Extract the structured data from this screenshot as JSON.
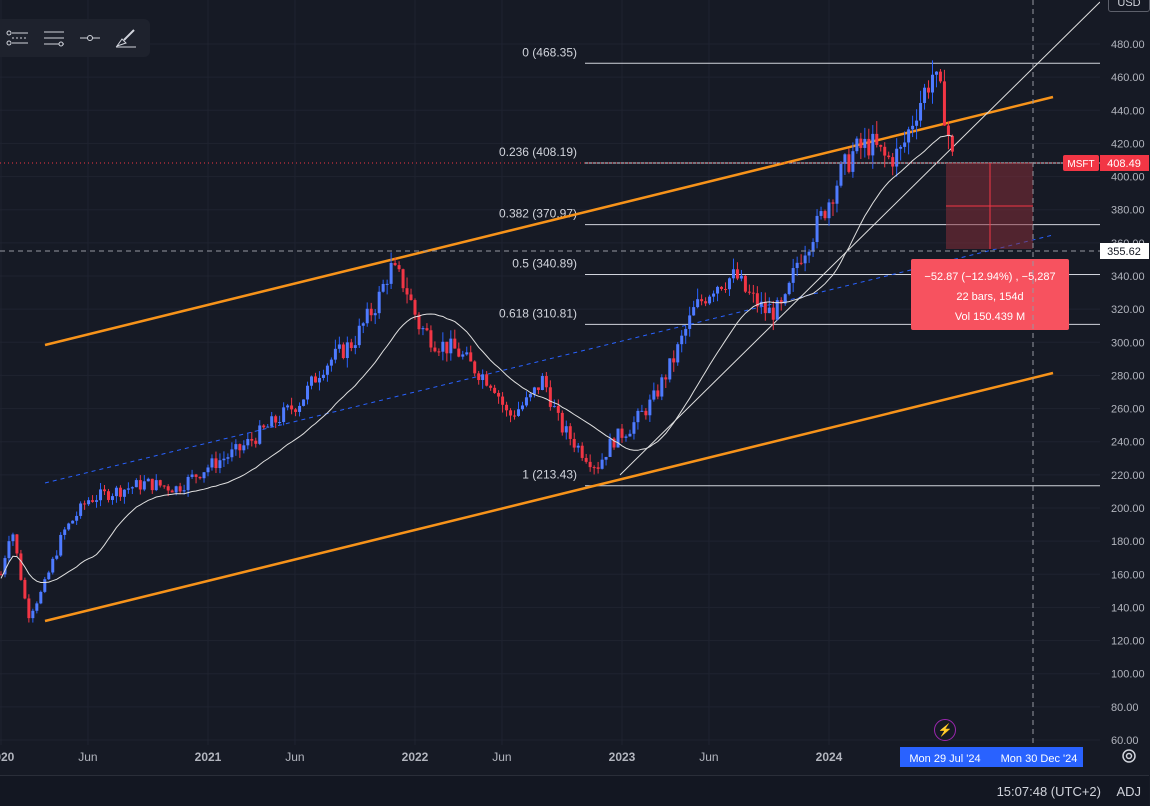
{
  "currency": "USD",
  "toolbar": {
    "tools": [
      "multi-line-icon",
      "settings-lines-icon",
      "line-point-icon",
      "brush-icon"
    ]
  },
  "chart_data": {
    "type": "candlestick",
    "symbol": "MSFT",
    "ylim": [
      60,
      480
    ],
    "y_ticks": [
      "60.00",
      "80.00",
      "100.00",
      "120.00",
      "140.00",
      "160.00",
      "180.00",
      "200.00",
      "220.00",
      "240.00",
      "260.00",
      "280.00",
      "300.00",
      "320.00",
      "340.00",
      "360.00",
      "380.00",
      "400.00",
      "420.00",
      "440.00",
      "460.00",
      "480.00"
    ],
    "x_ticks": [
      "2020",
      "Jun",
      "2021",
      "Jun",
      "2022",
      "Jun",
      "2023",
      "Jun",
      "2024"
    ],
    "price_labels": {
      "last_price": "408.49",
      "crosshair_price": "355.62",
      "symbol_tag": "MSFT"
    },
    "fib_levels": [
      {
        "ratio": "0",
        "price": 468.35,
        "label": "0 (468.35)"
      },
      {
        "ratio": "0.236",
        "price": 408.19,
        "label": "0.236 (408.19)"
      },
      {
        "ratio": "0.382",
        "price": 370.97,
        "label": "0.382 (370.97)"
      },
      {
        "ratio": "0.5",
        "price": 340.89,
        "label": "0.5 (340.89)"
      },
      {
        "ratio": "0.618",
        "price": 310.81,
        "label": "0.618 (310.81)"
      },
      {
        "ratio": "1",
        "price": 213.43,
        "label": "1 (213.43)"
      }
    ],
    "measure_box": {
      "line1": "−52.87 (−12.94%) , −5,287",
      "line2": "22 bars, 154d",
      "line3": "Vol 150.439 M"
    },
    "date_labels": [
      "Mon 29 Jul '24",
      "Mon 30 Dec '24"
    ],
    "price_path": [
      [
        2020.0,
        160
      ],
      [
        2020.05,
        190
      ],
      [
        2020.13,
        135
      ],
      [
        2020.2,
        150
      ],
      [
        2020.3,
        185
      ],
      [
        2020.42,
        205
      ],
      [
        2020.55,
        210
      ],
      [
        2020.7,
        215
      ],
      [
        2020.85,
        212
      ],
      [
        2021.0,
        225
      ],
      [
        2021.15,
        235
      ],
      [
        2021.3,
        250
      ],
      [
        2021.45,
        265
      ],
      [
        2021.55,
        285
      ],
      [
        2021.7,
        300
      ],
      [
        2021.82,
        325
      ],
      [
        2021.88,
        345
      ],
      [
        2021.95,
        335
      ],
      [
        2022.02,
        310
      ],
      [
        2022.1,
        300
      ],
      [
        2022.2,
        295
      ],
      [
        2022.28,
        285
      ],
      [
        2022.38,
        275
      ],
      [
        2022.45,
        255
      ],
      [
        2022.55,
        265
      ],
      [
        2022.62,
        278
      ],
      [
        2022.7,
        250
      ],
      [
        2022.8,
        235
      ],
      [
        2022.88,
        225
      ],
      [
        2022.95,
        240
      ],
      [
        2023.05,
        250
      ],
      [
        2023.15,
        265
      ],
      [
        2023.25,
        290
      ],
      [
        2023.35,
        320
      ],
      [
        2023.45,
        335
      ],
      [
        2023.55,
        340
      ],
      [
        2023.6,
        330
      ],
      [
        2023.7,
        318
      ],
      [
        2023.78,
        320
      ],
      [
        2023.85,
        350
      ],
      [
        2023.95,
        372
      ],
      [
        2024.05,
        400
      ],
      [
        2024.12,
        415
      ],
      [
        2024.2,
        420
      ],
      [
        2024.28,
        410
      ],
      [
        2024.35,
        415
      ],
      [
        2024.42,
        440
      ],
      [
        2024.5,
        462
      ],
      [
        2024.55,
        445
      ],
      [
        2024.6,
        408
      ]
    ]
  }
}
